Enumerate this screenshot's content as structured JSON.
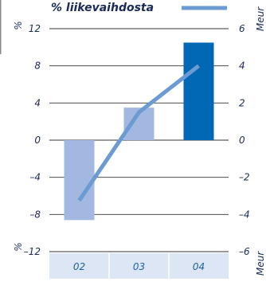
{
  "chart_data": {
    "type": "bar",
    "categories": [
      "02",
      "03",
      "04"
    ],
    "left_axis": {
      "unit_label": "%",
      "ylim": [
        -12,
        12
      ],
      "ticks": [
        12,
        8,
        4,
        0,
        -4,
        -8,
        -12
      ],
      "tick_labels": [
        "12",
        "8",
        "4",
        "0",
        "–4",
        "–8",
        "–12"
      ]
    },
    "right_axis": {
      "unit_label": "Meur",
      "ylim": [
        -6,
        6
      ],
      "ticks": [
        6,
        4,
        2,
        0,
        -2,
        -4,
        -6
      ],
      "tick_labels": [
        "6",
        "4",
        "2",
        "0",
        "–2",
        "–4",
        "–6"
      ]
    },
    "series": [
      {
        "type": "bar",
        "axis": "right",
        "values": [
          -4.3,
          1.75,
          5.25
        ],
        "colors": [
          "#a3b8e0",
          "#a3b8e0",
          "#0068b4"
        ]
      },
      {
        "type": "line",
        "axis": "left",
        "name": "% liikevaihdosta",
        "values": [
          -6.5,
          3.0,
          8.0
        ],
        "color": "#6b9bd2"
      }
    ],
    "legend": {
      "label": "% liikevaihdosta",
      "placement": "top"
    },
    "grid": true,
    "colors": {
      "axis_text": "#1a2a5a",
      "grid": "#333333",
      "category_band": "#dce6f4",
      "category_text": "#1f5fa8",
      "accent_bar": "#0068b4",
      "light_bar": "#a3b8e0",
      "line": "#6b9bd2",
      "margin_rule": "#888888"
    }
  }
}
